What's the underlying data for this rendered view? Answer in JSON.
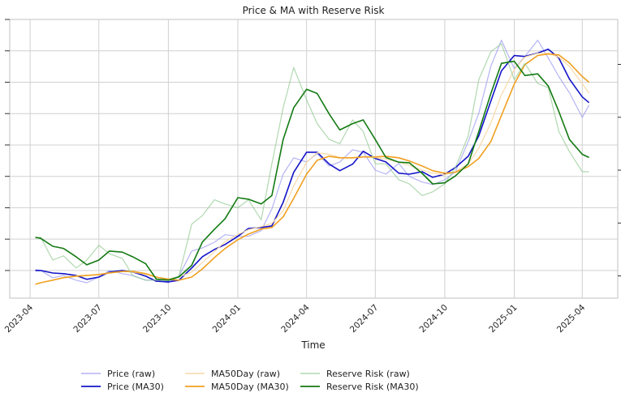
{
  "chart_data": {
    "type": "line",
    "title": "Price & MA with Reserve Risk",
    "xlabel": "Time",
    "ylabel": "",
    "y2label": "",
    "grid": true,
    "legend_position": "bottom",
    "xlim": [
      "2023-03-05",
      "2025-05-18"
    ],
    "ylim": [
      -0.88,
      8.0
    ],
    "y2lim": [
      -0.42,
      4.85
    ],
    "x_ticks": [
      "2023-04",
      "2023-07",
      "2023-10",
      "2024-01",
      "2024-04",
      "2024-07",
      "2024-10",
      "2025-01",
      "2025-04"
    ],
    "x_tick_dates": [
      "2023-04-01",
      "2023-07-01",
      "2023-10-01",
      "2024-01-01",
      "2024-04-01",
      "2024-07-01",
      "2024-10-01",
      "2025-01-01",
      "2025-04-01"
    ],
    "y_ticks": [
      0,
      1,
      2,
      3,
      4,
      5,
      6,
      7,
      8
    ],
    "y2_ticks": [
      0,
      1,
      2,
      3,
      4
    ],
    "y_tick_labels_visible": false,
    "x": [
      "2023-04-08",
      "2023-04-15",
      "2023-05-01",
      "2023-05-15",
      "2023-06-01",
      "2023-06-15",
      "2023-07-01",
      "2023-07-15",
      "2023-08-01",
      "2023-08-15",
      "2023-09-01",
      "2023-09-15",
      "2023-10-01",
      "2023-10-15",
      "2023-11-01",
      "2023-11-15",
      "2023-12-01",
      "2023-12-15",
      "2024-01-01",
      "2024-01-15",
      "2024-02-01",
      "2024-02-15",
      "2024-03-01",
      "2024-03-15",
      "2024-04-01",
      "2024-04-15",
      "2024-05-01",
      "2024-05-15",
      "2024-06-01",
      "2024-06-15",
      "2024-07-01",
      "2024-07-15",
      "2024-08-01",
      "2024-08-15",
      "2024-09-01",
      "2024-09-15",
      "2024-10-01",
      "2024-10-15",
      "2024-11-01",
      "2024-11-15",
      "2024-12-01",
      "2024-12-15",
      "2025-01-01",
      "2025-01-15",
      "2025-02-01",
      "2025-02-15",
      "2025-03-01",
      "2025-03-15",
      "2025-04-01",
      "2025-04-10"
    ],
    "series": [
      {
        "name": "Price (raw)",
        "axis": "left",
        "color": "#9b9bf0",
        "alpha": 0.75,
        "width": 1.2,
        "values": [
          0.03,
          0,
          -0.23,
          -0.16,
          -0.31,
          -0.39,
          -0.21,
          0,
          -0.1,
          -0.16,
          -0.31,
          -0.31,
          -0.39,
          -0.18,
          0.62,
          0.72,
          0.9,
          1.14,
          1.09,
          1.09,
          1.27,
          1.96,
          3.07,
          3.59,
          3.46,
          3.72,
          3.33,
          3.46,
          3.85,
          3.77,
          3.2,
          3.07,
          3.41,
          3.0,
          2.82,
          2.74,
          2.89,
          3.15,
          4.11,
          5.01,
          6.51,
          7.34,
          6.43,
          6.82,
          7.34,
          6.77,
          6.18,
          5.66,
          4.88,
          5.27
        ]
      },
      {
        "name": "Price (MA30)",
        "axis": "left",
        "color": "#1414c8",
        "alpha": 1,
        "width": 1.6,
        "values": [
          0,
          0,
          -0.08,
          -0.1,
          -0.16,
          -0.28,
          -0.21,
          -0.05,
          0,
          -0.05,
          -0.18,
          -0.34,
          -0.36,
          -0.31,
          0.08,
          0.44,
          0.67,
          0.83,
          1.09,
          1.34,
          1.37,
          1.42,
          2.17,
          3.13,
          3.77,
          3.77,
          3.39,
          3.18,
          3.39,
          3.8,
          3.57,
          3.46,
          3.1,
          3.07,
          3.15,
          2.97,
          3.07,
          3.28,
          3.64,
          4.29,
          5.4,
          6.36,
          6.85,
          6.82,
          6.93,
          7.05,
          6.77,
          6.1,
          5.53,
          5.35
        ]
      },
      {
        "name": "MA50Day (raw)",
        "axis": "left",
        "color": "#f8d9a8",
        "alpha": 1,
        "width": 1.2,
        "values": [
          -0.44,
          -0.39,
          -0.3,
          -0.22,
          -0.17,
          -0.15,
          -0.12,
          -0.07,
          -0.03,
          -0.05,
          -0.12,
          -0.22,
          -0.26,
          -0.21,
          -0.05,
          0.25,
          0.6,
          0.92,
          1.15,
          1.3,
          1.4,
          1.5,
          1.9,
          2.7,
          3.45,
          3.75,
          3.7,
          3.6,
          3.6,
          3.62,
          3.6,
          3.55,
          3.45,
          3.35,
          3.2,
          3.1,
          3.05,
          3.15,
          3.4,
          3.9,
          4.7,
          5.6,
          6.4,
          6.8,
          6.92,
          6.92,
          6.8,
          6.5,
          5.95,
          5.65
        ]
      },
      {
        "name": "MA50Day (MA30)",
        "axis": "left",
        "color": "#f0a020",
        "alpha": 1,
        "width": 1.6,
        "values": [
          -0.44,
          -0.39,
          -0.31,
          -0.23,
          -0.18,
          -0.16,
          -0.13,
          -0.08,
          -0.03,
          -0.03,
          -0.1,
          -0.21,
          -0.28,
          -0.31,
          -0.21,
          0.05,
          0.41,
          0.7,
          0.98,
          1.16,
          1.32,
          1.37,
          1.71,
          2.3,
          3.07,
          3.51,
          3.64,
          3.59,
          3.59,
          3.62,
          3.62,
          3.64,
          3.59,
          3.49,
          3.33,
          3.18,
          3.1,
          3.13,
          3.31,
          3.57,
          4.11,
          4.94,
          5.94,
          6.56,
          6.85,
          6.9,
          6.87,
          6.61,
          6.18,
          6.0
        ]
      },
      {
        "name": "Reserve Risk (raw)",
        "axis": "right",
        "color": "#8fc78f",
        "alpha": 0.7,
        "width": 1.2,
        "values": [
          0.71,
          0.73,
          0.3,
          0.38,
          0.15,
          0.3,
          0.58,
          0.42,
          0.33,
          0,
          -0.08,
          -0.08,
          -0.08,
          0,
          0.98,
          1.14,
          1.44,
          1.36,
          1.29,
          1.44,
          1.06,
          2.12,
          3.18,
          3.94,
          3.33,
          2.88,
          2.58,
          2.5,
          2.95,
          2.73,
          2.12,
          2.12,
          1.82,
          1.74,
          1.52,
          1.59,
          1.74,
          2.05,
          2.65,
          3.71,
          4.24,
          4.39,
          3.71,
          4.02,
          3.64,
          3.56,
          2.73,
          2.35,
          1.97,
          1.97
        ]
      },
      {
        "name": "Reserve Risk (MA30)",
        "axis": "right",
        "color": "#137a13",
        "alpha": 1,
        "width": 1.6,
        "values": [
          0.73,
          0.71,
          0.56,
          0.52,
          0.36,
          0.21,
          0.3,
          0.47,
          0.45,
          0.36,
          0.23,
          -0.06,
          -0.08,
          -0.02,
          0.2,
          0.64,
          0.88,
          1.08,
          1.48,
          1.45,
          1.36,
          1.52,
          2.58,
          3.18,
          3.53,
          3.45,
          3.06,
          2.76,
          2.88,
          2.95,
          2.58,
          2.24,
          2.15,
          2.14,
          1.94,
          1.74,
          1.76,
          1.89,
          2.12,
          2.73,
          3.45,
          4.02,
          4.06,
          3.79,
          3.82,
          3.59,
          3.11,
          2.58,
          2.3,
          2.24
        ]
      }
    ],
    "legend": {
      "entries": [
        "Price (raw)",
        "MA50Day (raw)",
        "Reserve Risk (raw)",
        "Reserve Risk (MA30)",
        "Price (MA30)",
        "MA50Day (MA30)"
      ]
    }
  }
}
